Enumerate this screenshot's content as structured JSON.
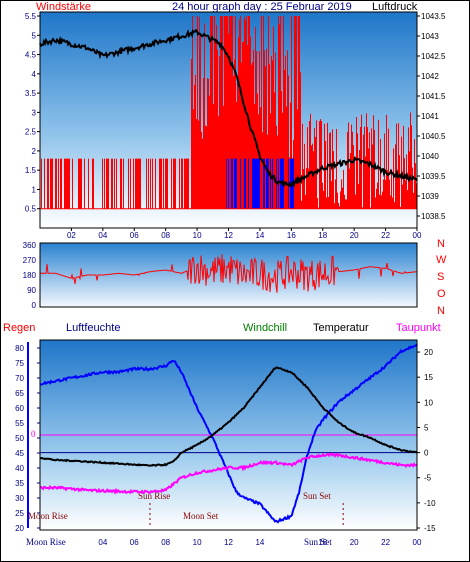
{
  "header": {
    "left": "Windstärke",
    "center": "24 hour graph day : 25 Februar 2019",
    "right": "Luftdruck"
  },
  "top_labels": {
    "regen": "Regen",
    "luftfeuchte": "Luftfeuchte",
    "windchill": "Windchill",
    "temperatur": "Temperatur",
    "taupunkt": "Taupunkt"
  },
  "compass": [
    "N",
    "W",
    "S",
    "O",
    "N"
  ],
  "moon_rise": "Moon Rise",
  "sun_rise": "Sun Rise",
  "moon_set": "Moon Set",
  "sun_set": "Sun Set",
  "bottom_moon": "Moon Rise",
  "bottom_sun": "Sun Set",
  "zero_label": "0",
  "colors": {
    "regen": "#ff0000",
    "luftfeuchte": "#0000ff",
    "windchill": "#008000",
    "temperatur": "#000000",
    "taupunkt": "#ff00ff",
    "axis_left": "#00008b",
    "compass": "#ff0000"
  },
  "x_ticks": [
    "02",
    "04",
    "06",
    "08",
    "10",
    "12",
    "14",
    "16",
    "18",
    "20",
    "22",
    "00"
  ],
  "chart_data": [
    {
      "type": "line",
      "title": "24 hour graph day : 25 Februar 2019",
      "ylabel": "Windstärke",
      "y2label": "Luftdruck",
      "ylim": [
        0,
        5.5
      ],
      "y_ticks": [
        "0.5",
        "1",
        "1.5",
        "2",
        "2.5",
        "3",
        "3.5",
        "4",
        "4.5",
        "5",
        "5.5"
      ],
      "y2lim": [
        1038.2,
        1043.6
      ],
      "y2_ticks": [
        "1038.5",
        "1039",
        "1039.5",
        "1040",
        "1040.5",
        "1041",
        "1041.5",
        "1042",
        "1042.5",
        "1043",
        "1043.5"
      ],
      "xlim": [
        0,
        24
      ],
      "series": [
        {
          "name": "Luftdruck",
          "x": [
            0,
            1,
            2,
            3,
            4,
            5,
            6,
            7,
            8,
            9,
            10,
            11,
            11.5,
            12,
            12.5,
            13,
            13.5,
            14,
            14.5,
            15,
            15.5,
            16,
            17,
            18,
            19,
            20,
            21,
            22,
            23,
            24
          ],
          "values": [
            1042.8,
            1042.9,
            1042.8,
            1042.7,
            1042.5,
            1042.6,
            1042.7,
            1042.8,
            1042.9,
            1043.0,
            1043.1,
            1042.9,
            1042.8,
            1042.5,
            1042.0,
            1041.3,
            1040.6,
            1040.0,
            1039.6,
            1039.4,
            1039.3,
            1039.3,
            1039.5,
            1039.7,
            1039.8,
            1039.9,
            1039.8,
            1039.6,
            1039.5,
            1039.4
          ]
        },
        {
          "name": "Windstärke",
          "x": [
            0,
            2,
            4,
            6,
            8,
            10,
            12,
            14,
            16,
            18,
            20,
            22,
            24
          ],
          "values": [
            1,
            1,
            1,
            1,
            1,
            1.5,
            3.5,
            2.5,
            1.5,
            1.2,
            1,
            1,
            1
          ]
        }
      ]
    },
    {
      "type": "line",
      "ylim": [
        0,
        360
      ],
      "y_ticks": [
        "360",
        "270",
        "180",
        "90",
        "0"
      ],
      "xlim": [
        0,
        24
      ],
      "series": [
        {
          "name": "Windrichtung",
          "x": [
            0,
            1,
            2,
            3,
            4,
            5,
            6,
            7,
            8,
            9,
            10,
            11,
            12,
            13,
            14,
            15,
            16,
            17,
            18,
            19,
            20,
            21,
            22,
            23,
            24
          ],
          "values": [
            190,
            190,
            160,
            180,
            180,
            190,
            180,
            200,
            210,
            190,
            230,
            200,
            220,
            180,
            190,
            170,
            200,
            180,
            190,
            200,
            210,
            230,
            220,
            190,
            200
          ]
        }
      ]
    },
    {
      "type": "line",
      "ylabel": "Luftfeuchte",
      "ylim": [
        20,
        82
      ],
      "y_ticks": [
        "20",
        "25",
        "30",
        "35",
        "40",
        "45",
        "50",
        "55",
        "60",
        "65",
        "70",
        "75",
        "80"
      ],
      "y2lim": [
        -15,
        22
      ],
      "y2_ticks": [
        "20",
        "15",
        "10",
        "5",
        "0",
        "-5",
        "-10",
        "-15"
      ],
      "xlim": [
        0,
        24
      ],
      "series": [
        {
          "name": "Luftfeuchte",
          "x": [
            0,
            1,
            2,
            3,
            4,
            5,
            6,
            7,
            8,
            8.5,
            9,
            9.5,
            10,
            11,
            12,
            12.5,
            13,
            14,
            15,
            16,
            16.5,
            17,
            17.5,
            18,
            19,
            20,
            21,
            22,
            23,
            24
          ],
          "values": [
            68,
            69,
            70,
            71,
            72,
            72,
            73,
            73,
            74,
            76,
            72,
            66,
            60,
            50,
            38,
            32,
            30,
            28,
            22,
            24,
            32,
            44,
            52,
            56,
            62,
            66,
            70,
            74,
            79,
            81
          ]
        },
        {
          "name": "Temperatur",
          "x": [
            0,
            1,
            2,
            3,
            4,
            5,
            6,
            7,
            8,
            8.5,
            9,
            10,
            11,
            12,
            13,
            14,
            15,
            16,
            17,
            18,
            19,
            20,
            21,
            22,
            23,
            24
          ],
          "values": [
            -1,
            -1.5,
            -1.6,
            -1.8,
            -2,
            -2.2,
            -2.4,
            -2.6,
            -2.4,
            -1.8,
            0,
            1.5,
            3.5,
            6,
            9,
            13,
            17,
            16,
            13,
            9,
            6,
            4,
            3,
            1.5,
            0.5,
            0
          ]
        },
        {
          "name": "Taupunkt",
          "x": [
            0,
            1,
            2,
            3,
            4,
            5,
            6,
            7,
            8,
            9,
            10,
            11,
            12,
            13,
            14,
            15,
            16,
            17,
            18,
            19,
            20,
            21,
            22,
            23,
            24
          ],
          "values": [
            -7,
            -7,
            -7.2,
            -7.5,
            -7.6,
            -7.7,
            -7.8,
            -7.8,
            -7.5,
            -5,
            -4,
            -3.5,
            -3,
            -3,
            -2,
            -2,
            -2.5,
            -1,
            -0.5,
            -0.5,
            -1,
            -1.5,
            -2,
            -2.5,
            -2.5
          ]
        }
      ]
    }
  ]
}
